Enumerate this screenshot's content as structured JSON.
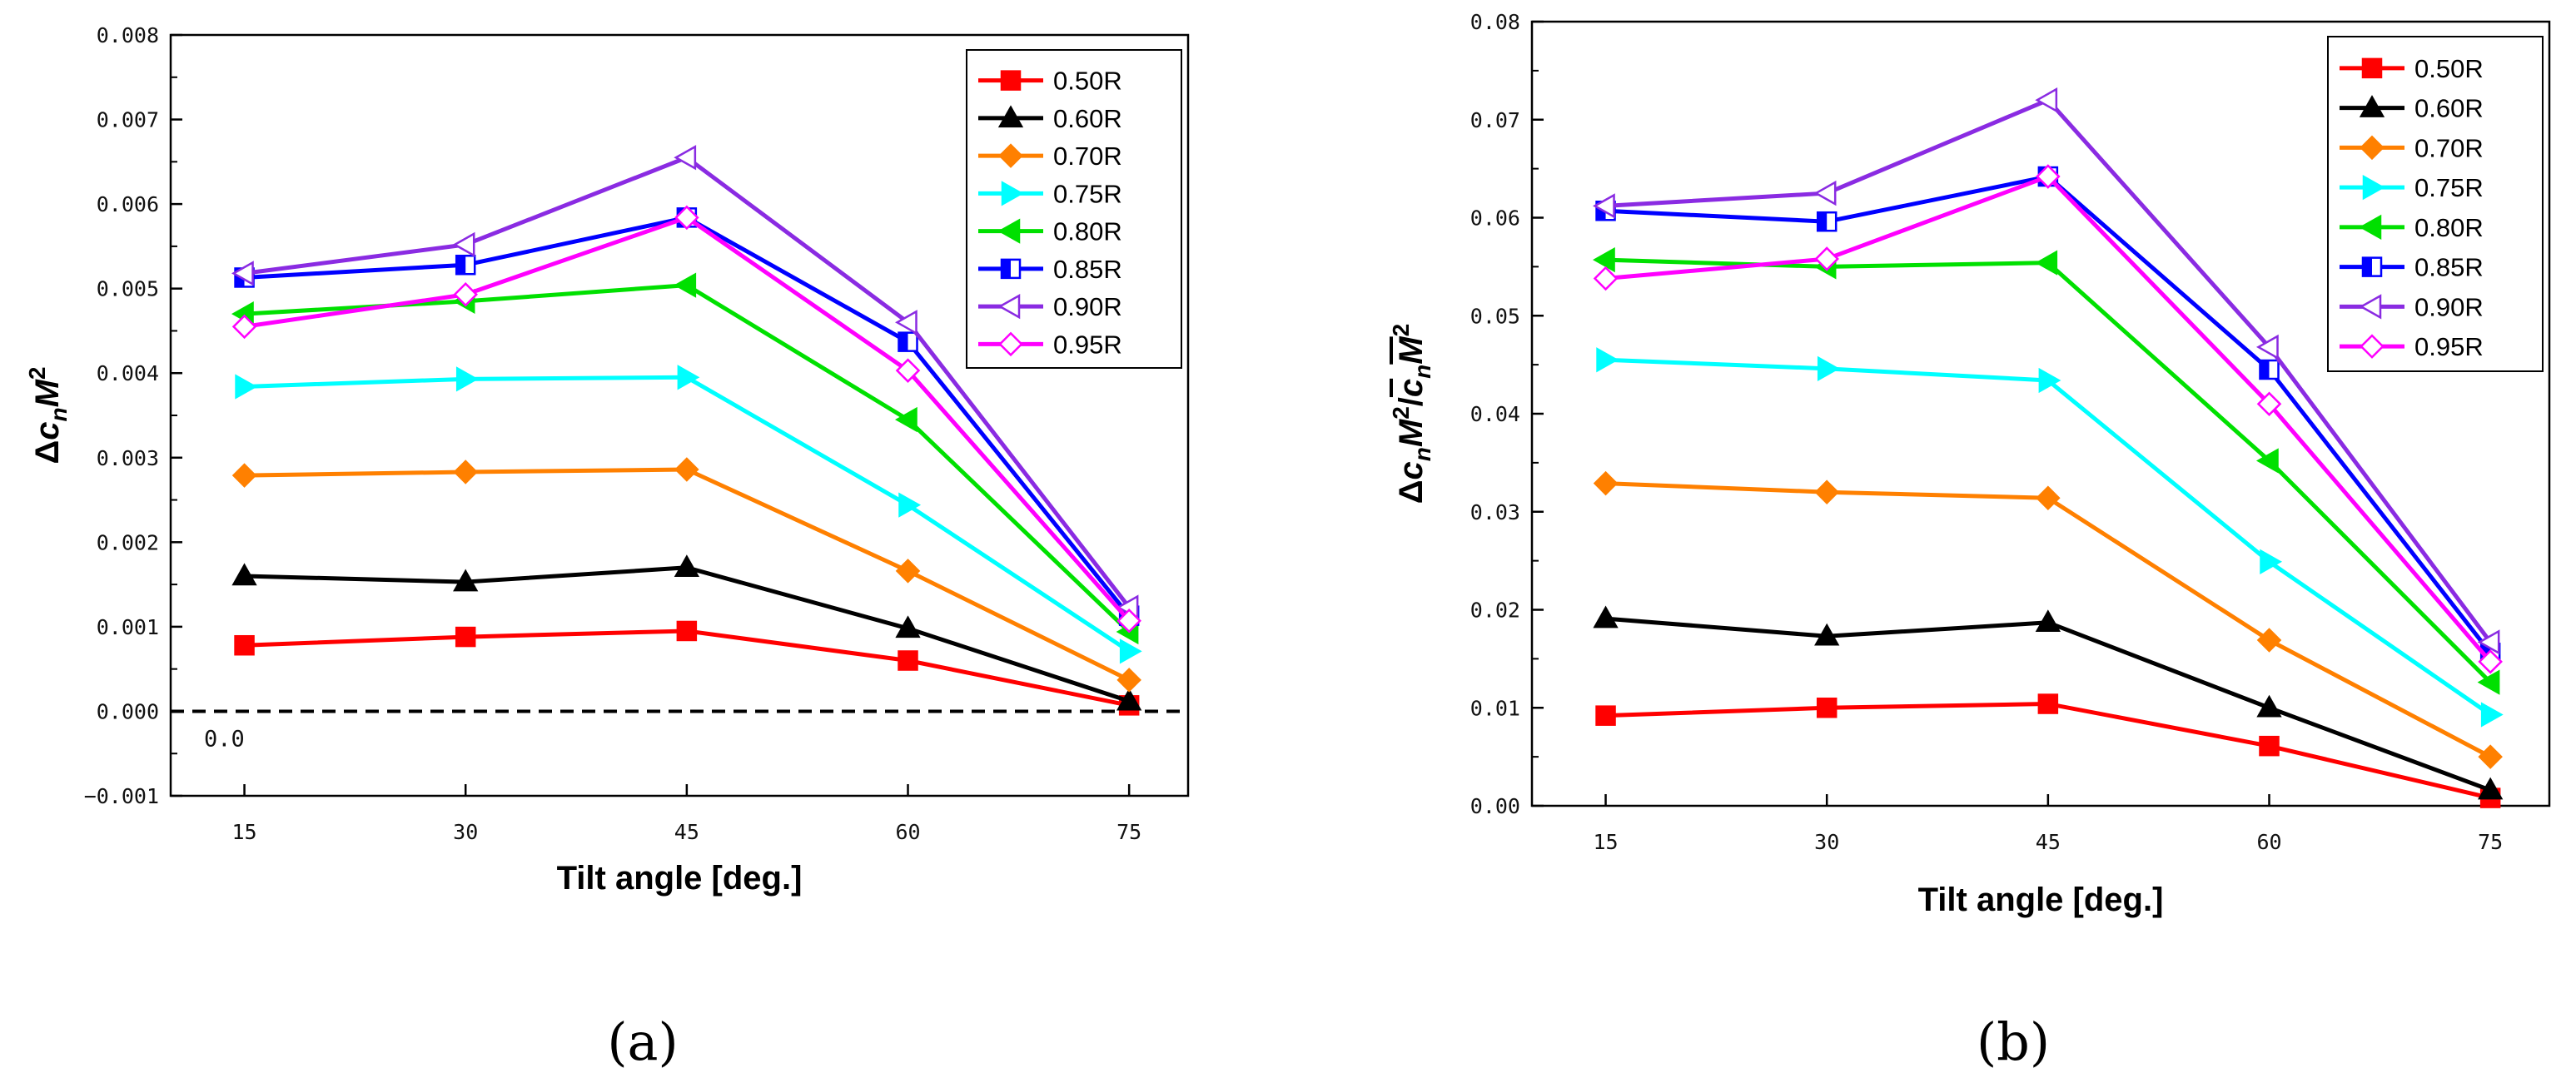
{
  "chart_data": [
    {
      "type": "line",
      "panel_label": "(a)",
      "xlabel": "Tilt angle [deg.]",
      "ylabel": "Δc_nM²",
      "ylabel_parts": {
        "delta": "Δ",
        "c": "c",
        "sub": "n",
        "m": "M",
        "sup": "2"
      },
      "x": [
        15,
        30,
        45,
        60,
        75
      ],
      "xticks": [
        "15",
        "30",
        "45",
        "60",
        "75"
      ],
      "xlim": [
        10,
        79
      ],
      "ylim": [
        -0.001,
        0.008
      ],
      "yticks": [
        "−0.001",
        "0.000",
        "0.001",
        "0.002",
        "0.003",
        "0.004",
        "0.005",
        "0.006",
        "0.007",
        "0.008"
      ],
      "ytick_values": [
        -0.001,
        0,
        0.001,
        0.002,
        0.003,
        0.004,
        0.005,
        0.006,
        0.007,
        0.008
      ],
      "reference_line": {
        "y": 0,
        "style": "dashed",
        "label": "0.0"
      },
      "legend_position": "top-right",
      "series": [
        {
          "name": "0.50R",
          "color": "#ff0000",
          "marker": "square-filled",
          "values": [
            0.00078,
            0.00088,
            0.00095,
            0.0006,
            7e-05
          ]
        },
        {
          "name": "0.60R",
          "color": "#000000",
          "marker": "triangle-up-filled",
          "values": [
            0.0016,
            0.00153,
            0.0017,
            0.00098,
            0.00012
          ]
        },
        {
          "name": "0.70R",
          "color": "#ff8000",
          "marker": "diamond-filled",
          "values": [
            0.00279,
            0.00283,
            0.00286,
            0.00166,
            0.00037
          ]
        },
        {
          "name": "0.75R",
          "color": "#00ffff",
          "marker": "triangle-right-filled",
          "values": [
            0.00384,
            0.00393,
            0.00395,
            0.00244,
            0.00071
          ]
        },
        {
          "name": "0.80R",
          "color": "#00e000",
          "marker": "triangle-left-filled",
          "values": [
            0.0047,
            0.00485,
            0.00504,
            0.00345,
            0.00094
          ]
        },
        {
          "name": "0.85R",
          "color": "#0000ff",
          "marker": "square-half",
          "values": [
            0.00513,
            0.00528,
            0.00584,
            0.00437,
            0.00113
          ]
        },
        {
          "name": "0.90R",
          "color": "#8a2be2",
          "marker": "triangle-left-open",
          "values": [
            0.00518,
            0.00552,
            0.00655,
            0.0046,
            0.00123
          ]
        },
        {
          "name": "0.95R",
          "color": "#ff00ff",
          "marker": "diamond-open",
          "values": [
            0.00455,
            0.00493,
            0.00584,
            0.00403,
            0.00107
          ]
        }
      ]
    },
    {
      "type": "line",
      "panel_label": "(b)",
      "xlabel": "Tilt angle [deg.]",
      "ylabel": "Δc_nM²/c_nM² (overlined)",
      "ylabel_parts": {
        "delta": "Δ",
        "c": "c",
        "sub": "n",
        "m": "M",
        "sup": "2",
        "slash": "/"
      },
      "x": [
        15,
        30,
        45,
        60,
        75
      ],
      "xticks": [
        "15",
        "30",
        "45",
        "60",
        "75"
      ],
      "xlim": [
        10,
        79
      ],
      "ylim": [
        0,
        0.08
      ],
      "yticks": [
        "0.00",
        "0.01",
        "0.02",
        "0.03",
        "0.04",
        "0.05",
        "0.06",
        "0.07",
        "0.08"
      ],
      "ytick_values": [
        0,
        0.01,
        0.02,
        0.03,
        0.04,
        0.05,
        0.06,
        0.07,
        0.08
      ],
      "legend_position": "top-right",
      "series": [
        {
          "name": "0.50R",
          "color": "#ff0000",
          "marker": "square-filled",
          "values": [
            0.0092,
            0.01,
            0.0104,
            0.0061,
            0.0008
          ]
        },
        {
          "name": "0.60R",
          "color": "#000000",
          "marker": "triangle-up-filled",
          "values": [
            0.0191,
            0.0173,
            0.0187,
            0.01,
            0.0016
          ]
        },
        {
          "name": "0.70R",
          "color": "#ff8000",
          "marker": "diamond-filled",
          "values": [
            0.0329,
            0.032,
            0.0314,
            0.0169,
            0.005
          ]
        },
        {
          "name": "0.75R",
          "color": "#00ffff",
          "marker": "triangle-right-filled",
          "values": [
            0.0455,
            0.0446,
            0.0434,
            0.0249,
            0.0093
          ]
        },
        {
          "name": "0.80R",
          "color": "#00e000",
          "marker": "triangle-left-filled",
          "values": [
            0.0557,
            0.055,
            0.0554,
            0.0352,
            0.0126
          ]
        },
        {
          "name": "0.85R",
          "color": "#0000ff",
          "marker": "square-half",
          "values": [
            0.0607,
            0.0596,
            0.0642,
            0.0445,
            0.0156
          ]
        },
        {
          "name": "0.90R",
          "color": "#8a2be2",
          "marker": "triangle-left-open",
          "values": [
            0.0612,
            0.0625,
            0.072,
            0.0468,
            0.0167
          ]
        },
        {
          "name": "0.95R",
          "color": "#ff00ff",
          "marker": "diamond-open",
          "values": [
            0.0538,
            0.0558,
            0.0642,
            0.041,
            0.0147
          ]
        }
      ]
    }
  ]
}
